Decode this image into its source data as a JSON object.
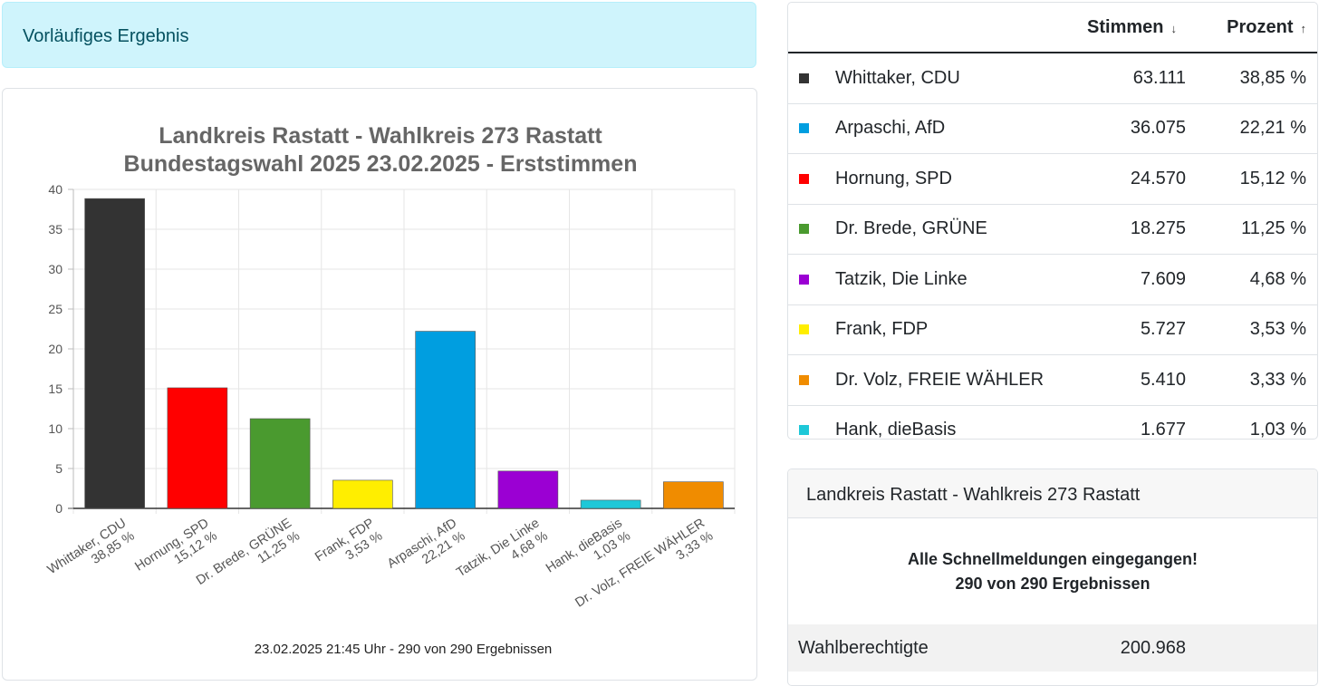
{
  "alert": {
    "text": "Vorläufiges Ergebnis"
  },
  "chart_data": {
    "type": "bar",
    "title": [
      "Landkreis Rastatt - Wahlkreis 273 Rastatt",
      "Bundestagswahl 2025 23.02.2025  - Erststimmen"
    ],
    "categories": [
      [
        "Whittaker, CDU",
        "38,85 %"
      ],
      [
        "Hornung, SPD",
        "15,12 %"
      ],
      [
        "Dr. Brede, GRÜNE",
        "11,25 %"
      ],
      [
        "Frank, FDP",
        "3,53 %"
      ],
      [
        "Arpaschi, AfD",
        "22,21 %"
      ],
      [
        "Tatzik, Die Linke",
        "4,68 %"
      ],
      [
        "Hank, dieBasis",
        "1,03 %"
      ],
      [
        "Dr. Volz, FREIE WÄHLER",
        "3,33 %"
      ]
    ],
    "values": [
      38.85,
      15.12,
      11.25,
      3.53,
      22.21,
      4.68,
      1.03,
      3.33
    ],
    "colors": [
      "#333333",
      "#ff0000",
      "#4a9a2f",
      "#ffee00",
      "#009ee0",
      "#9b00d3",
      "#1ec8d8",
      "#f08c00"
    ],
    "ylim": [
      0,
      40
    ],
    "yticks": [
      0,
      5,
      10,
      15,
      20,
      25,
      30,
      35,
      40
    ],
    "grid": true,
    "footnote": "23.02.2025 21:45 Uhr - 290 von 290 Ergebnissen"
  },
  "results_table": {
    "headers": {
      "votes": "Stimmen",
      "percent": "Prozent"
    },
    "rows": [
      {
        "color": "#333333",
        "name": "Whittaker, CDU",
        "votes": "63.111",
        "percent": "38,85 %"
      },
      {
        "color": "#009ee0",
        "name": "Arpaschi, AfD",
        "votes": "36.075",
        "percent": "22,21 %"
      },
      {
        "color": "#ff0000",
        "name": "Hornung, SPD",
        "votes": "24.570",
        "percent": "15,12 %"
      },
      {
        "color": "#4a9a2f",
        "name": "Dr. Brede, GRÜNE",
        "votes": "18.275",
        "percent": "11,25 %"
      },
      {
        "color": "#9b00d3",
        "name": "Tatzik, Die Linke",
        "votes": "7.609",
        "percent": "4,68 %"
      },
      {
        "color": "#ffee00",
        "name": "Frank, FDP",
        "votes": "5.727",
        "percent": "3,53 %"
      },
      {
        "color": "#f08c00",
        "name": "Dr. Volz, FREIE WÄHLER",
        "votes": "5.410",
        "percent": "3,33 %"
      },
      {
        "color": "#1ec8d8",
        "name": "Hank, dieBasis",
        "votes": "1.677",
        "percent": "1,03 %"
      }
    ]
  },
  "info_card": {
    "title": "Landkreis Rastatt - Wahlkreis 273 Rastatt",
    "message_line1": "Alle Schnellmeldungen eingegangen!",
    "message_line2": "290 von 290 Ergebnissen",
    "eligible_label": "Wahlberechtigte",
    "eligible_value": "200.968"
  }
}
